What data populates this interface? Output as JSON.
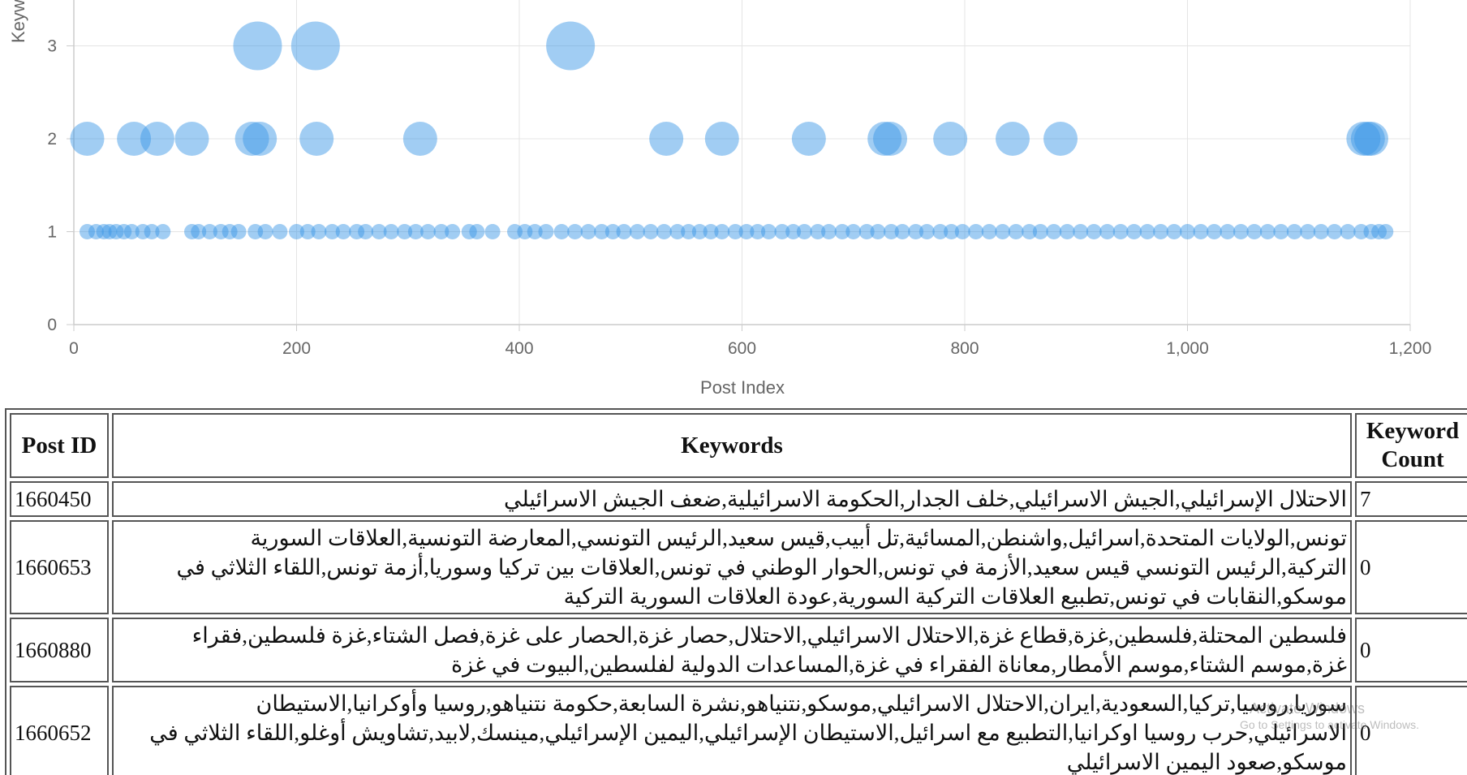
{
  "chart_data": {
    "type": "scatter",
    "title": "",
    "xlabel": "Post Index",
    "ylabel": "Keywo",
    "xlim": [
      0,
      1200
    ],
    "ylim": [
      0,
      3.3
    ],
    "x_ticks": [
      "0",
      "200",
      "400",
      "600",
      "800",
      "1,000",
      "1,200"
    ],
    "y_ticks": [
      "0",
      "1",
      "2",
      "3"
    ],
    "grid": true,
    "point_color": "#3a97e6",
    "series": [
      {
        "x": [
          12,
          20,
          27,
          32,
          38,
          45,
          52,
          62,
          70,
          80,
          106,
          112,
          122,
          132,
          140,
          148,
          163,
          172,
          185,
          200,
          210,
          220,
          232,
          242,
          254,
          262,
          274,
          285,
          297,
          307,
          318,
          330,
          340,
          355,
          362,
          376,
          396,
          405,
          414,
          424,
          438,
          450,
          462,
          474,
          484,
          494,
          506,
          518,
          530,
          542,
          552,
          562,
          572,
          582,
          594,
          604,
          614,
          624,
          636,
          646,
          656,
          668,
          678,
          690,
          700,
          712,
          722,
          734,
          744,
          756,
          766,
          778,
          788,
          798,
          810,
          822,
          834,
          846,
          858,
          868,
          880,
          892,
          904,
          916,
          928,
          940,
          952,
          964,
          976,
          988,
          1000,
          1012,
          1024,
          1036,
          1048,
          1060,
          1072,
          1084,
          1096,
          1108,
          1120,
          1132,
          1144,
          1156,
          1165,
          1172,
          1178,
          12,
          54,
          75,
          106,
          160,
          167,
          218,
          311,
          532,
          582,
          660,
          728,
          733,
          787,
          843,
          886,
          1158,
          1162,
          1165,
          165,
          217,
          446
        ],
        "y": [
          1,
          1,
          1,
          1,
          1,
          1,
          1,
          1,
          1,
          1,
          1,
          1,
          1,
          1,
          1,
          1,
          1,
          1,
          1,
          1,
          1,
          1,
          1,
          1,
          1,
          1,
          1,
          1,
          1,
          1,
          1,
          1,
          1,
          1,
          1,
          1,
          1,
          1,
          1,
          1,
          1,
          1,
          1,
          1,
          1,
          1,
          1,
          1,
          1,
          1,
          1,
          1,
          1,
          1,
          1,
          1,
          1,
          1,
          1,
          1,
          1,
          1,
          1,
          1,
          1,
          1,
          1,
          1,
          1,
          1,
          1,
          1,
          1,
          1,
          1,
          1,
          1,
          1,
          1,
          1,
          1,
          1,
          1,
          1,
          1,
          1,
          1,
          1,
          1,
          1,
          1,
          1,
          1,
          1,
          1,
          1,
          1,
          1,
          1,
          1,
          1,
          1,
          1,
          1,
          1,
          1,
          1,
          2,
          2,
          2,
          2,
          2,
          2,
          2,
          2,
          2,
          2,
          2,
          2,
          2,
          2,
          2,
          2,
          2,
          2,
          2,
          3,
          3,
          3
        ]
      }
    ]
  },
  "table": {
    "headers": [
      "Post ID",
      "Keywords",
      "Keyword Count"
    ],
    "rows": [
      {
        "id": "1660450",
        "keywords": "الاحتلال الإسرائيلي,الجيش الاسرائيلي,خلف الجدار,الحكومة الاسرائيلية,ضعف الجيش الاسرائيلي",
        "count": "7"
      },
      {
        "id": "1660653",
        "keywords": "تونس,الولايات المتحدة,اسرائيل,واشنطن,المسائية,تل أبيب,قيس سعيد,الرئيس التونسي,المعارضة التونسية,العلاقات السورية التركية,الرئيس التونسي قيس سعيد,الأزمة في تونس,الحوار الوطني في تونس,العلاقات بين تركيا وسوريا,أزمة تونس,اللقاء الثلاثي في موسكو,النقابات في تونس,تطبيع العلاقات التركية السورية,عودة العلاقات السورية التركية",
        "count": "0"
      },
      {
        "id": "1660880",
        "keywords": "فلسطين المحتلة,فلسطين,غزة,قطاع غزة,الاحتلال الاسرائيلي,الاحتلال,حصار غزة,الحصار على غزة,فصل الشتاء,غزة فلسطين,فقراء غزة,موسم الشتاء,موسم الأمطار,معاناة الفقراء في غزة,المساعدات الدولية لفلسطين,البيوت في غزة",
        "count": "0"
      },
      {
        "id": "1660652",
        "keywords": "سوريا,روسيا,تركيا,السعودية,ايران,الاحتلال الاسرائيلي,موسكو,نتنياهو,نشرة السابعة,حكومة نتنياهو,روسيا وأوكرانيا,الاستيطان الاسرائيلي,حرب روسيا اوكرانيا,التطبيع مع اسرائيل,الاستيطان الإسرائيلي,اليمين الإسرائيلي,مينسك,لابيد,تشاويش أوغلو,اللقاء الثلاثي في موسكو,صعود اليمين الاسرائيلي",
        "count": "0"
      }
    ]
  },
  "watermark": {
    "line1": "Activate Windows",
    "line2": "Go to Settings to activate Windows."
  }
}
